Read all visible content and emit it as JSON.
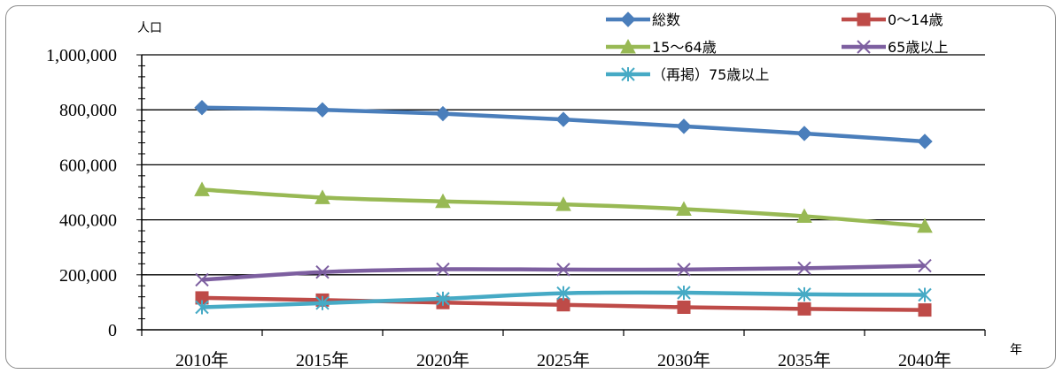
{
  "chart_data": {
    "type": "line",
    "title": "",
    "ylabel": "人口",
    "xlabel": "年",
    "ylim": [
      0,
      1000000
    ],
    "yticks": [
      0,
      200000,
      400000,
      600000,
      800000,
      1000000
    ],
    "ytick_labels": [
      "0",
      "200,000",
      "400,000",
      "600,000",
      "800,000",
      "1,000,000"
    ],
    "grid": true,
    "legend_position": "top-right",
    "categories": [
      "2010年",
      "2015年",
      "2020年",
      "2025年",
      "2030年",
      "2035年",
      "2040年"
    ],
    "series": [
      {
        "name": "総数",
        "color": "#4a7ebb",
        "marker": "diamond",
        "values": [
          808000,
          800000,
          786000,
          765000,
          740000,
          714000,
          685000
        ]
      },
      {
        "name": "0～14歳",
        "color": "#be4b48",
        "marker": "square",
        "values": [
          116000,
          108000,
          99000,
          91000,
          82000,
          76000,
          72000
        ]
      },
      {
        "name": "15～64歳",
        "color": "#98b954",
        "marker": "triangle",
        "values": [
          510000,
          481000,
          467000,
          456000,
          439000,
          413000,
          377000
        ]
      },
      {
        "name": "65歳以上",
        "color": "#7d5fa0",
        "marker": "x",
        "values": [
          182000,
          210000,
          220000,
          219000,
          219000,
          224000,
          233000
        ]
      },
      {
        "name": "（再掲）75歳以上",
        "color": "#46aac5",
        "marker": "star",
        "values": [
          82000,
          97000,
          113000,
          133000,
          135000,
          129000,
          127000
        ]
      }
    ]
  }
}
